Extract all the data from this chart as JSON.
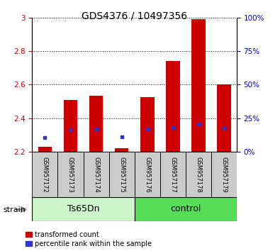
{
  "title": "GDS4376 / 10497356",
  "samples": [
    "GSM957172",
    "GSM957173",
    "GSM957174",
    "GSM957175",
    "GSM957176",
    "GSM957177",
    "GSM957178",
    "GSM957179"
  ],
  "red_values": [
    2.23,
    2.51,
    2.535,
    2.22,
    2.525,
    2.74,
    2.99,
    2.6
  ],
  "blue_values": [
    2.285,
    2.33,
    2.335,
    2.29,
    2.335,
    2.345,
    2.365,
    2.34
  ],
  "ylim_left": [
    2.2,
    3.0
  ],
  "ylim_right": [
    0,
    100
  ],
  "yticks_left": [
    2.2,
    2.4,
    2.6,
    2.8,
    3.0
  ],
  "ytick_labels_left": [
    "2.2",
    "2.4",
    "2.6",
    "2.8",
    "3"
  ],
  "yticks_right": [
    0,
    25,
    50,
    75,
    100
  ],
  "ytick_labels_right": [
    "0%",
    "25%",
    "50%",
    "75%",
    "100%"
  ],
  "bar_bottom": 2.2,
  "red_color": "#cc0000",
  "blue_color": "#3333cc",
  "left_tick_color": "#cc0000",
  "right_tick_color": "#0000cc",
  "ts65_color": "#ccf5cc",
  "ctrl_color": "#55dd55",
  "gray_color": "#cccccc",
  "legend_red": "transformed count",
  "legend_blue": "percentile rank within the sample",
  "title_fontsize": 10,
  "tick_fontsize": 7.5,
  "sample_fontsize": 6,
  "group_fontsize": 9
}
